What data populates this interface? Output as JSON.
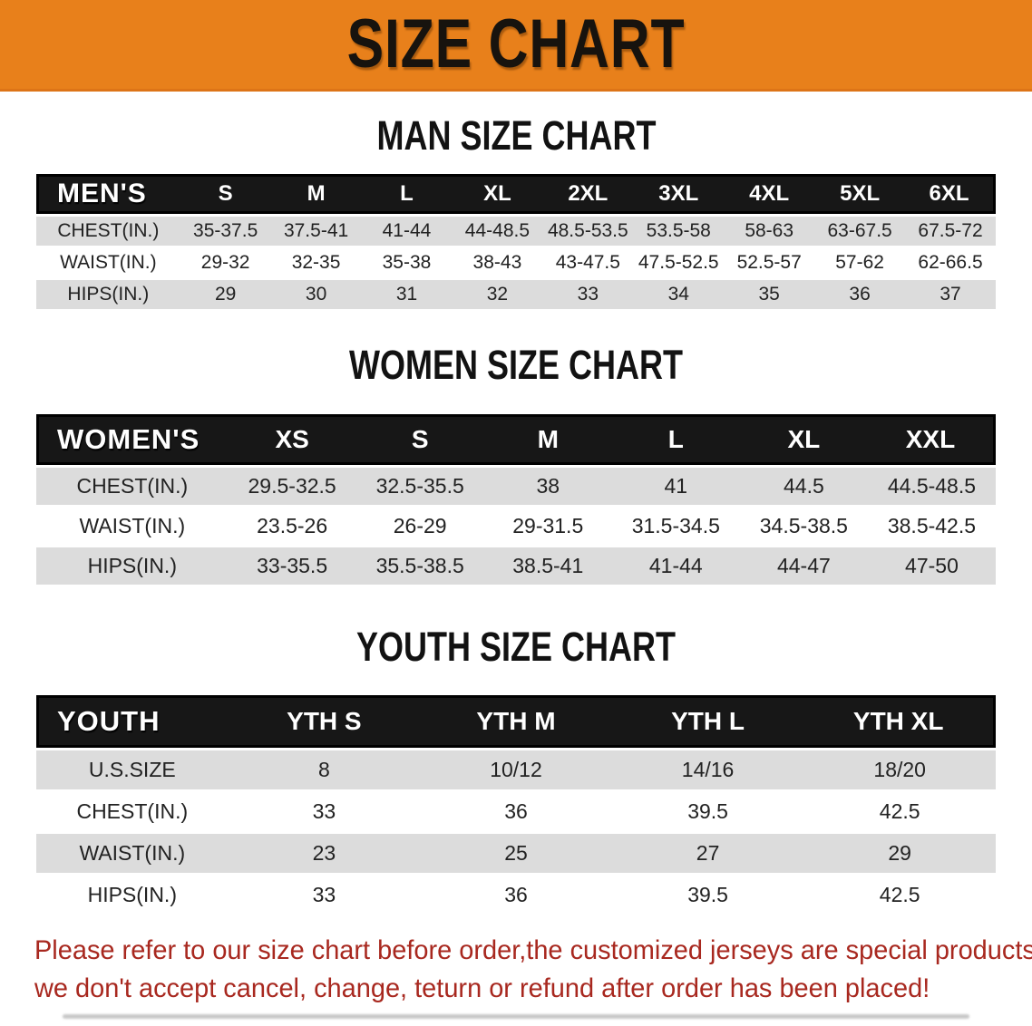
{
  "banner": {
    "title": "SIZE CHART",
    "bg_color": "#E8801B",
    "text_color": "#17130e"
  },
  "colors": {
    "header_band": "#171717",
    "stripe_row": "#DCDCDC",
    "disclaimer_red": "#A8281F"
  },
  "sections": {
    "men": {
      "heading": "MAN SIZE CHART",
      "corner": "MEN'S",
      "sizes": [
        "S",
        "M",
        "L",
        "XL",
        "2XL",
        "3XL",
        "4XL",
        "5XL",
        "6XL"
      ],
      "rows": [
        {
          "label": "CHEST(IN.)",
          "values": [
            "35-37.5",
            "37.5-41",
            "41-44",
            "44-48.5",
            "48.5-53.5",
            "53.5-58",
            "58-63",
            "63-67.5",
            "67.5-72"
          ]
        },
        {
          "label": "WAIST(IN.)",
          "values": [
            "29-32",
            "32-35",
            "35-38",
            "38-43",
            "43-47.5",
            "47.5-52.5",
            "52.5-57",
            "57-62",
            "62-66.5"
          ]
        },
        {
          "label": "HIPS(IN.)",
          "values": [
            "29",
            "30",
            "31",
            "32",
            "33",
            "34",
            "35",
            "36",
            "37"
          ]
        }
      ]
    },
    "women": {
      "heading": "WOMEN SIZE CHART",
      "corner": "WOMEN'S",
      "sizes": [
        "XS",
        "S",
        "M",
        "L",
        "XL",
        "XXL"
      ],
      "rows": [
        {
          "label": "CHEST(IN.)",
          "values": [
            "29.5-32.5",
            "32.5-35.5",
            "38",
            "41",
            "44.5",
            "44.5-48.5"
          ]
        },
        {
          "label": "WAIST(IN.)",
          "values": [
            "23.5-26",
            "26-29",
            "29-31.5",
            "31.5-34.5",
            "34.5-38.5",
            "38.5-42.5"
          ]
        },
        {
          "label": "HIPS(IN.)",
          "values": [
            "33-35.5",
            "35.5-38.5",
            "38.5-41",
            "41-44",
            "44-47",
            "47-50"
          ]
        }
      ]
    },
    "youth": {
      "heading": "YOUTH SIZE CHART",
      "corner": "YOUTH",
      "sizes": [
        "YTH S",
        "YTH M",
        "YTH L",
        "YTH XL"
      ],
      "rows": [
        {
          "label": "U.S.SIZE",
          "values": [
            "8",
            "10/12",
            "14/16",
            "18/20"
          ]
        },
        {
          "label": "CHEST(IN.)",
          "values": [
            "33",
            "36",
            "39.5",
            "42.5"
          ]
        },
        {
          "label": "WAIST(IN.)",
          "values": [
            "23",
            "25",
            "27",
            "29"
          ]
        },
        {
          "label": "HIPS(IN.)",
          "values": [
            "33",
            "36",
            "39.5",
            "42.5"
          ]
        }
      ]
    }
  },
  "disclaimer": {
    "line1": "Please refer to our size chart before order,the customized jerseys are special products,",
    "line2": "we don't accept cancel, change, teturn or refund after order has been placed!"
  }
}
